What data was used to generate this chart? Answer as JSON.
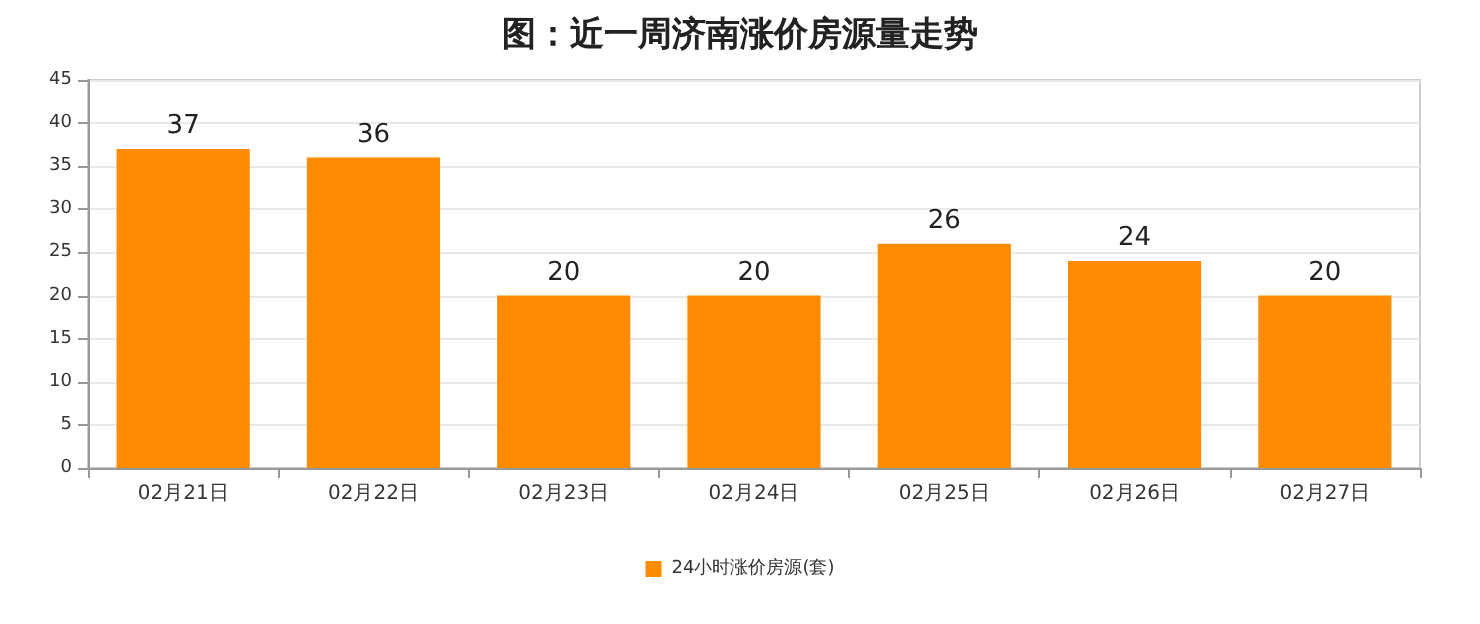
{
  "chart_data": {
    "type": "bar",
    "title": "图：近一周济南涨价房源量走势",
    "categories": [
      "02月21日",
      "02月22日",
      "02月23日",
      "02月24日",
      "02月25日",
      "02月26日",
      "02月27日"
    ],
    "series": [
      {
        "name": "24小时涨价房源(套)",
        "color": "#ff8c00",
        "values": [
          37,
          36,
          20,
          20,
          26,
          24,
          20
        ]
      }
    ],
    "ylim": [
      0,
      45
    ],
    "yticks": [
      0,
      5,
      10,
      15,
      20,
      25,
      30,
      35,
      40,
      45
    ],
    "grid": "y",
    "legend": "bottom",
    "data_labels": true
  }
}
